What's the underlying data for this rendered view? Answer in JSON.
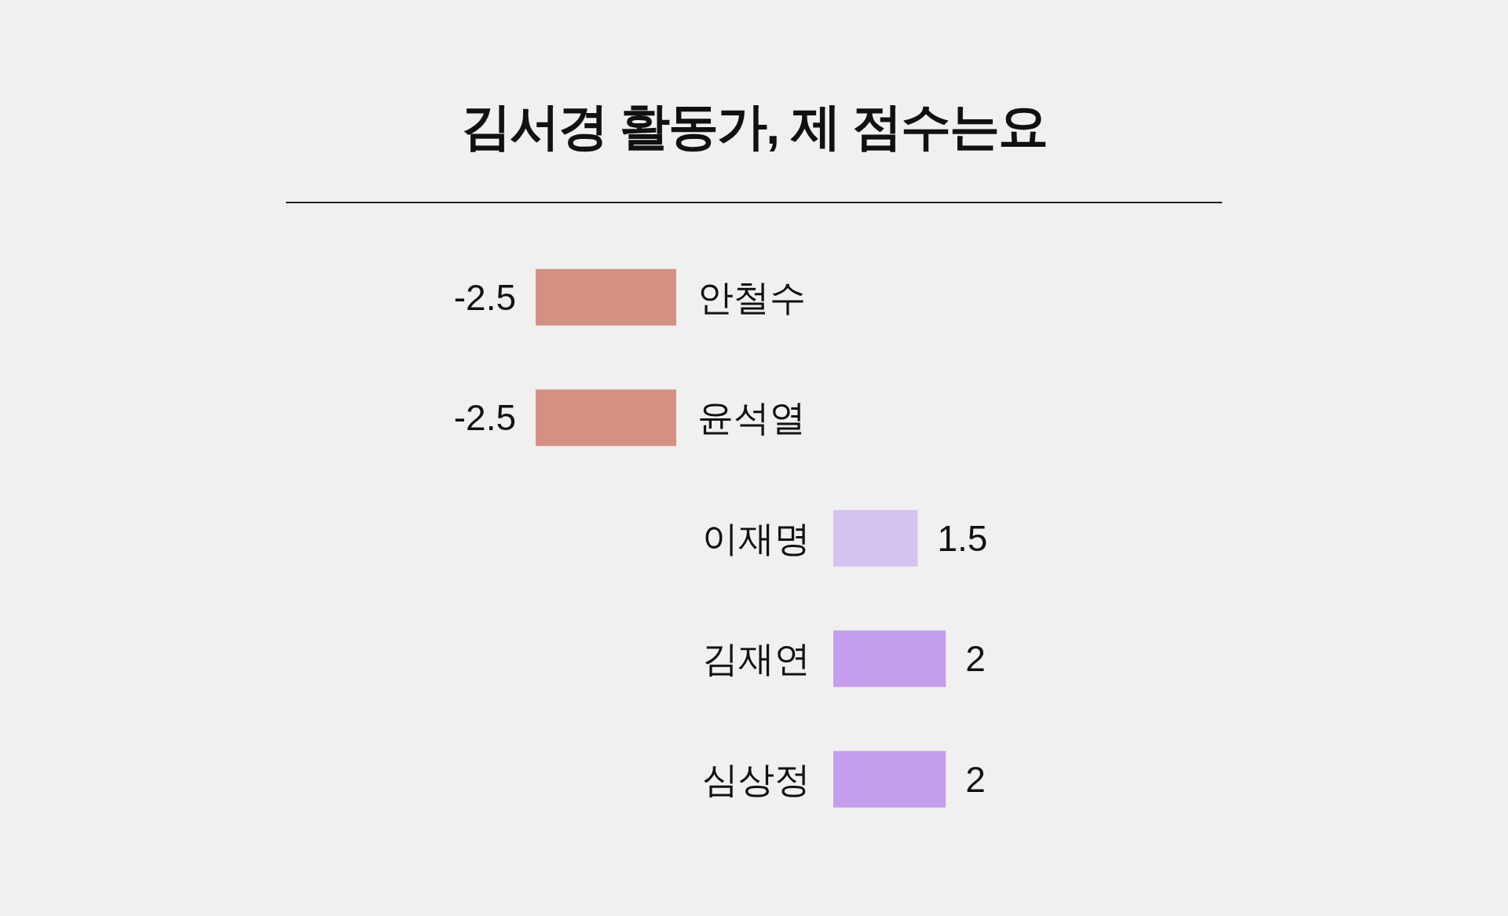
{
  "chart_data": [
    {
      "type": "bar",
      "orientation": "horizontal",
      "title": "김서경 활동가, 제 점수는요",
      "categories": [
        "안철수",
        "윤석열"
      ],
      "values": [
        -2.5,
        -2.5
      ],
      "colors": [
        "#d49083",
        "#d49083"
      ],
      "data_labels": true
    },
    {
      "type": "bar",
      "orientation": "horizontal",
      "categories": [
        "이재명",
        "김재연",
        "심상정"
      ],
      "values": [
        1.5,
        2,
        2
      ],
      "colors": [
        "#d4c2ef",
        "#c59ded",
        "#c59ded"
      ],
      "data_labels": true
    }
  ]
}
